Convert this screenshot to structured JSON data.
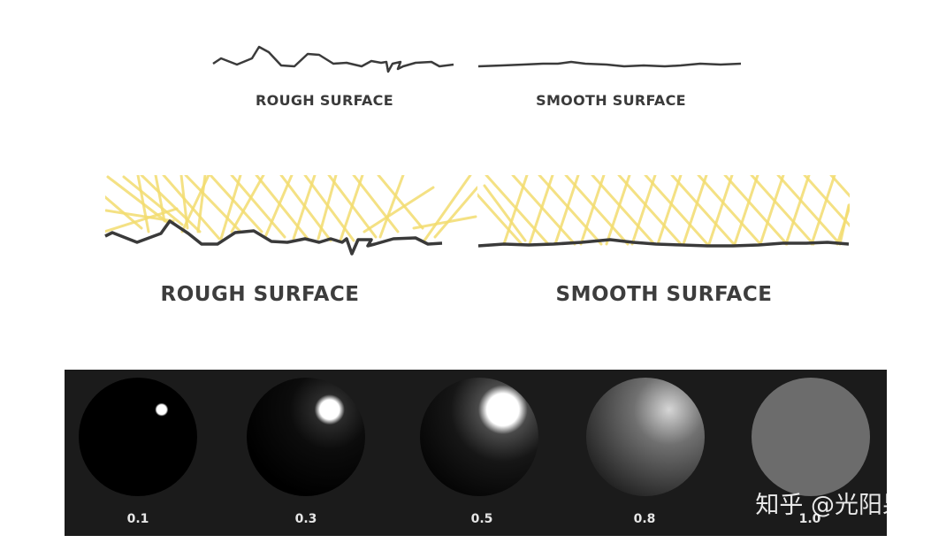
{
  "top_diagram": {
    "rough_label": "ROUGH SURFACE",
    "smooth_label": "SMOOTH SURFACE"
  },
  "light_diagram": {
    "rough_label": "ROUGH SURFACE",
    "smooth_label": "SMOOTH SURFACE",
    "light_color": "#f2dc6e",
    "surface_color": "#3a3a3a"
  },
  "roughness_spheres": {
    "background_color": "#1b1b1b",
    "spheres": [
      {
        "label": "0.1"
      },
      {
        "label": "0.3"
      },
      {
        "label": "0.5"
      },
      {
        "label": "0.8"
      },
      {
        "label": "1.0"
      }
    ]
  },
  "watermark": {
    "text": "知乎 @光阳果"
  }
}
